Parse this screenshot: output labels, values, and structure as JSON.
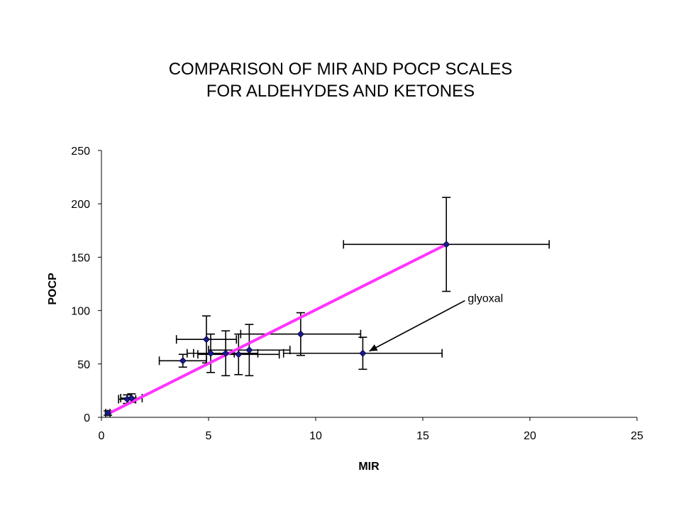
{
  "chart_data": {
    "type": "scatter",
    "title_lines": [
      "COMPARISON OF MIR AND POCP SCALES",
      "FOR ALDEHYDES AND KETONES"
    ],
    "xlabel": "MIR",
    "ylabel": "POCP",
    "xlim": [
      0,
      25
    ],
    "ylim": [
      0,
      250
    ],
    "xticks": [
      0,
      5,
      10,
      15,
      20,
      25
    ],
    "yticks": [
      0,
      50,
      100,
      150,
      200,
      250
    ],
    "grid": false,
    "legend": "none",
    "points": [
      {
        "x": 0.3,
        "y": 4,
        "xerr": 0.1,
        "yerr": 2
      },
      {
        "x": 1.2,
        "y": 17,
        "xerr": 0.4,
        "yerr": 4
      },
      {
        "x": 1.4,
        "y": 18,
        "xerr": 0.5,
        "yerr": 4
      },
      {
        "x": 3.8,
        "y": 53,
        "xerr": 1.1,
        "yerr": 6
      },
      {
        "x": 4.9,
        "y": 73,
        "xerr": 1.4,
        "yerr": 22
      },
      {
        "x": 5.1,
        "y": 60,
        "xerr": 1.1,
        "yerr": 18
      },
      {
        "x": 5.8,
        "y": 60,
        "xerr": 1.5,
        "yerr": 21
      },
      {
        "x": 6.4,
        "y": 59,
        "xerr": 1.9,
        "yerr": 19
      },
      {
        "x": 6.9,
        "y": 63,
        "xerr": 1.9,
        "yerr": 24
      },
      {
        "x": 9.3,
        "y": 78,
        "xerr": 2.8,
        "yerr": 20
      },
      {
        "x": 12.2,
        "y": 60,
        "xerr": 3.7,
        "yerr": 15
      },
      {
        "x": 16.1,
        "y": 162,
        "xerr": 4.8,
        "yerr": 44
      }
    ],
    "fit_line": {
      "x": [
        0.3,
        16.1
      ],
      "y": [
        3.2,
        162
      ],
      "color": "#ff33ff"
    },
    "marker_color": "#1a1a8c",
    "annotation": {
      "text": "glyoxal",
      "text_at": [
        17.1,
        112
      ],
      "arrow_to": [
        12.5,
        62
      ]
    }
  }
}
